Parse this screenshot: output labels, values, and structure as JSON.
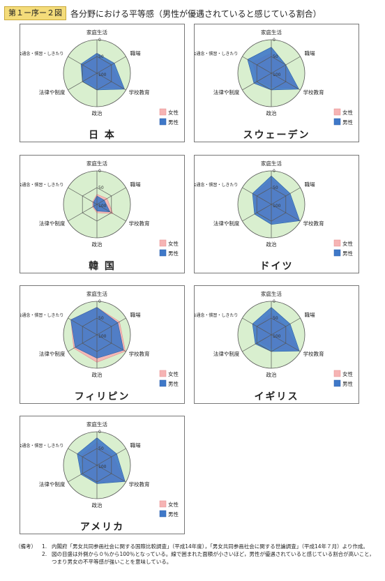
{
  "header": {
    "figure_label": "第１ー序ー２図",
    "title": "各分野における平等感（男性が優遇されていると感じている割合）"
  },
  "legend": {
    "female": "女性",
    "male": "男性"
  },
  "colors": {
    "background": "#d9efcf",
    "female": "#f6b4b4",
    "male": "#3f78c8",
    "grid": "#555555"
  },
  "chart_data": [
    {
      "type": "radar",
      "country": "日 本",
      "axes": [
        "家庭生活",
        "職場",
        "学校教育",
        "政治",
        "法律や制度",
        "社会通念・慣習・しきたり"
      ],
      "ticks": [
        "0",
        "50",
        "100"
      ],
      "grid": true,
      "legend_position": "bottom-right",
      "series": [
        {
          "name": "女性",
          "values": [
            50,
            52,
            8,
            58,
            58,
            52
          ]
        },
        {
          "name": "男性",
          "values": [
            40,
            40,
            5,
            50,
            50,
            45
          ]
        }
      ]
    },
    {
      "type": "radar",
      "country": "スウェーデン",
      "axes": [
        "家庭生活",
        "職場",
        "学校教育",
        "政治",
        "法律や制度",
        "社会通念・慣習・しきたり"
      ],
      "ticks": [
        "0",
        "50",
        "100"
      ],
      "grid": true,
      "legend_position": "bottom-right",
      "series": [
        {
          "name": "女性",
          "values": [
            40,
            57,
            10,
            60,
            55,
            35
          ]
        },
        {
          "name": "男性",
          "values": [
            22,
            50,
            5,
            50,
            40,
            18
          ]
        }
      ]
    },
    {
      "type": "radar",
      "country": "韓 国",
      "axes": [
        "家庭生活",
        "職場",
        "学校教育",
        "政治",
        "法律や制度",
        "社会通念・慣習・しきたり"
      ],
      "ticks": [
        "0",
        "50",
        "100"
      ],
      "grid": true,
      "legend_position": "bottom-right",
      "series": [
        {
          "name": "女性",
          "values": [
            70,
            65,
            45,
            75,
            85,
            85
          ]
        },
        {
          "name": "男性",
          "values": [
            75,
            75,
            55,
            80,
            88,
            88
          ]
        }
      ]
    },
    {
      "type": "radar",
      "country": "ドイツ",
      "axes": [
        "家庭生活",
        "職場",
        "学校教育",
        "政治",
        "法律や制度",
        "社会通念・慣習・しきたり"
      ],
      "ticks": [
        "0",
        "50",
        "100"
      ],
      "grid": true,
      "legend_position": "bottom-right",
      "series": [
        {
          "name": "女性",
          "values": [
            25,
            42,
            3,
            48,
            50,
            42
          ]
        },
        {
          "name": "男性",
          "values": [
            15,
            35,
            2,
            40,
            42,
            35
          ]
        }
      ]
    },
    {
      "type": "radar",
      "country": "フィリピン",
      "axes": [
        "家庭生活",
        "職場",
        "学校教育",
        "政治",
        "法律や制度",
        "社会通念・慣習・しきたり"
      ],
      "ticks": [
        "0",
        "50",
        "100"
      ],
      "grid": true,
      "legend_position": "bottom-right",
      "series": [
        {
          "name": "女性",
          "values": [
            18,
            22,
            2,
            18,
            20,
            10
          ]
        },
        {
          "name": "男性",
          "values": [
            18,
            28,
            8,
            30,
            25,
            10
          ]
        }
      ]
    },
    {
      "type": "radar",
      "country": "イギリス",
      "axes": [
        "家庭生活",
        "職場",
        "学校教育",
        "政治",
        "法律や制度",
        "社会通念・慣習・しきたり"
      ],
      "ticks": [
        "0",
        "50",
        "100"
      ],
      "grid": true,
      "legend_position": "bottom-right",
      "series": [
        {
          "name": "女性",
          "values": [
            35,
            50,
            5,
            60,
            60,
            48
          ]
        },
        {
          "name": "男性",
          "values": [
            18,
            35,
            3,
            50,
            45,
            35
          ]
        }
      ]
    },
    {
      "type": "radar",
      "country": "アメリカ",
      "axes": [
        "家庭生活",
        "職場",
        "学校教育",
        "政治",
        "法律や制度",
        "社会通念・慣習・しきたり"
      ],
      "ticks": [
        "0",
        "50",
        "100"
      ],
      "grid": true,
      "legend_position": "bottom-right",
      "series": [
        {
          "name": "女性",
          "values": [
            32,
            45,
            5,
            50,
            55,
            45
          ]
        },
        {
          "name": "男性",
          "values": [
            18,
            32,
            3,
            45,
            45,
            32
          ]
        }
      ]
    }
  ],
  "notes": {
    "lead": "（備考）",
    "items": [
      {
        "num": "1.",
        "text": "内閣府「男女共同参画社会に関する国際比較調査」（平成14年度），「男女共同参画社会に関する世論調査」（平成14年７月）より作成。"
      },
      {
        "num": "2.",
        "text": "図の目盛は外側から０％から100％となっている。線で囲まれた面積が小さいほど，男性が優遇されていると感じている割合が高いこと，つまり男女の不平等感が強いことを意味している。"
      }
    ]
  }
}
